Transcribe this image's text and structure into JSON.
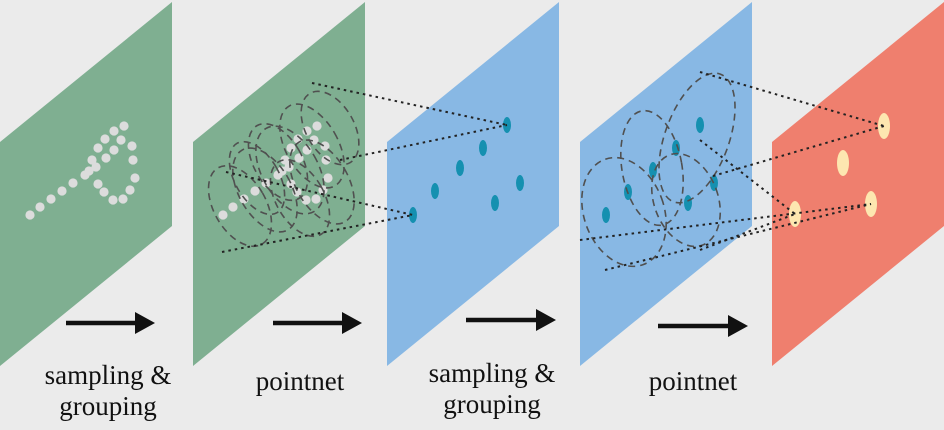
{
  "colors": {
    "background": "#ebebeb",
    "plane_input": "#7faf91",
    "plane_mid": "#88b8e4",
    "plane_out": "#ef7f6e",
    "point_input": "#dcdcdc",
    "point_mid": "#1590b0",
    "point_out": "#fde7b0",
    "arrow": "#111111",
    "circle_stroke": "#505050"
  },
  "planes": [
    {
      "id": "plane-1",
      "color": "plane_input"
    },
    {
      "id": "plane-2",
      "color": "plane_input"
    },
    {
      "id": "plane-3",
      "color": "plane_mid"
    },
    {
      "id": "plane-4",
      "color": "plane_mid"
    },
    {
      "id": "plane-5",
      "color": "plane_out"
    }
  ],
  "steps": [
    {
      "line1": "sampling &",
      "line2": "grouping"
    },
    {
      "line1": "pointnet",
      "line2": ""
    },
    {
      "line1": "sampling &",
      "line2": "grouping"
    },
    {
      "line1": "pointnet",
      "line2": ""
    }
  ]
}
